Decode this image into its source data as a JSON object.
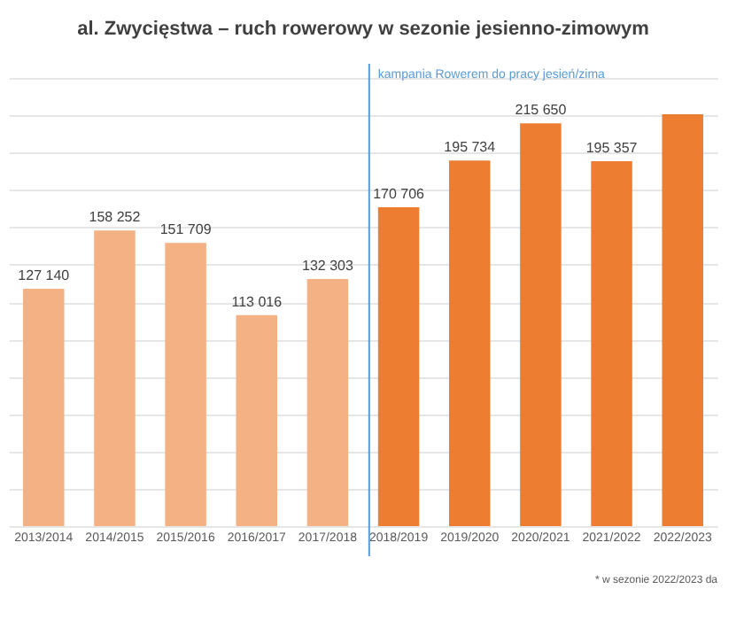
{
  "chart_data": {
    "type": "bar",
    "title": "al. Zwycięstwa – ruch rowerowy w sezonie jesienno-zimowym",
    "categories": [
      "2013/2014",
      "2014/2015",
      "2015/2016",
      "2016/2017",
      "2017/2018",
      "2018/2019",
      "2019/2020",
      "2020/2021",
      "2021/2022",
      "2022/2023"
    ],
    "values": [
      127140,
      158252,
      151709,
      113016,
      132303,
      170706,
      195734,
      215650,
      195357,
      220600
    ],
    "colors": [
      "#f4b183",
      "#f4b183",
      "#f4b183",
      "#f4b183",
      "#f4b183",
      "#ed7d31",
      "#ed7d31",
      "#ed7d31",
      "#ed7d31",
      "#ed7d31"
    ],
    "value_labels": [
      "127 140",
      "158 252",
      "151 709",
      "113 016",
      "132 303",
      "170 706",
      "195 734",
      "215 650",
      "195 357",
      null
    ],
    "grid": "y",
    "tick_labels": "x",
    "ref_lines": [
      {
        "axis": "x",
        "value": "2018/2019",
        "label": "kampania Rowerem do pracy jesień/zima",
        "color": "#5b9bd5"
      }
    ],
    "annotations": [
      "* w sezonie 2022/2023 da"
    ]
  }
}
